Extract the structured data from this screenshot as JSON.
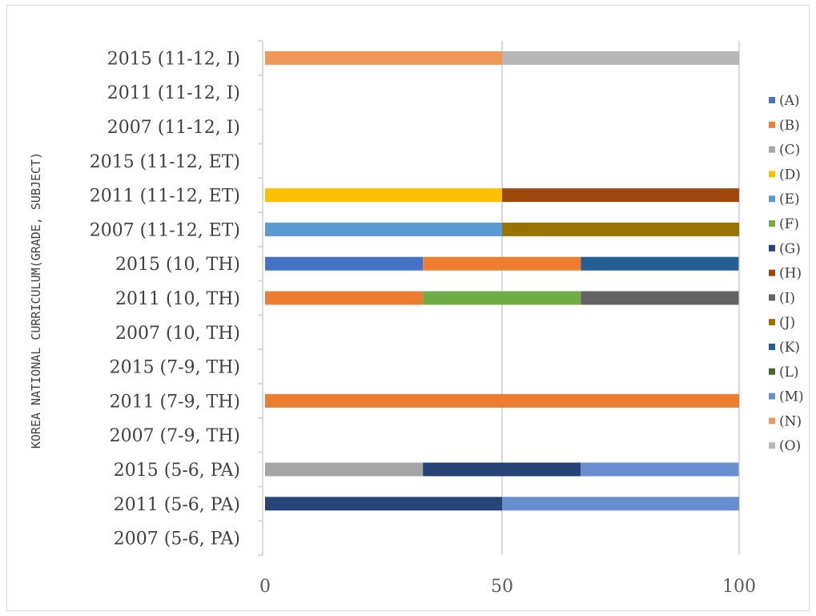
{
  "chart_data": {
    "type": "bar",
    "orientation": "horizontal",
    "stacked": true,
    "ylabel": "KOREA NATIONAL CURRICULUM(GRADE, SUBJECT)",
    "xlabel": "",
    "xlim": [
      0,
      100
    ],
    "xticks": [
      0,
      50,
      100
    ],
    "grid": "vertical",
    "legend_position": "right",
    "categories": [
      "2015 (11-12, I)",
      "2011 (11-12, I)",
      "2007 (11-12, I)",
      "2015 (11-12, ET)",
      "2011 (11-12, ET)",
      "2007 (11-12, ET)",
      "2015 (10, TH)",
      "2011 (10, TH)",
      "2007 (10, TH)",
      "2015 (7-9, TH)",
      "2011 (7-9, TH)",
      "2007 (7-9, TH)",
      "2015 (5-6, PA)",
      "2011 (5-6, PA)",
      "2007 (5-6, PA)"
    ],
    "series": [
      {
        "name": "(A)",
        "color": "#4472c4",
        "values": [
          0,
          0,
          0,
          0,
          0,
          0,
          33.3,
          0,
          0,
          0,
          0,
          0,
          0,
          0,
          0
        ]
      },
      {
        "name": "(B)",
        "color": "#ed7d31",
        "values": [
          0,
          0,
          0,
          0,
          0,
          0,
          33.3,
          33.3,
          0,
          0,
          100,
          0,
          0,
          0,
          0
        ]
      },
      {
        "name": "(C)",
        "color": "#a5a5a5",
        "values": [
          0,
          0,
          0,
          0,
          0,
          0,
          0,
          0,
          0,
          0,
          0,
          0,
          33.3,
          0,
          0
        ]
      },
      {
        "name": "(D)",
        "color": "#ffc000",
        "values": [
          0,
          0,
          0,
          0,
          50,
          0,
          0,
          0,
          0,
          0,
          0,
          0,
          0,
          0,
          0
        ]
      },
      {
        "name": "(E)",
        "color": "#5b9bd5",
        "values": [
          0,
          0,
          0,
          0,
          0,
          50,
          0,
          0,
          0,
          0,
          0,
          0,
          0,
          0,
          0
        ]
      },
      {
        "name": "(F)",
        "color": "#70ad47",
        "values": [
          0,
          0,
          0,
          0,
          0,
          0,
          0,
          33.3,
          0,
          0,
          0,
          0,
          0,
          0,
          0
        ]
      },
      {
        "name": "(G)",
        "color": "#264478",
        "values": [
          0,
          0,
          0,
          0,
          0,
          0,
          0,
          0,
          0,
          0,
          0,
          0,
          33.3,
          50,
          0
        ]
      },
      {
        "name": "(H)",
        "color": "#9e480e",
        "values": [
          0,
          0,
          0,
          0,
          50,
          0,
          0,
          0,
          0,
          0,
          0,
          0,
          0,
          0,
          0
        ]
      },
      {
        "name": "(I)",
        "color": "#636363",
        "values": [
          0,
          0,
          0,
          0,
          0,
          0,
          0,
          33.3,
          0,
          0,
          0,
          0,
          0,
          0,
          0
        ]
      },
      {
        "name": "(J)",
        "color": "#997300",
        "values": [
          0,
          0,
          0,
          0,
          0,
          50,
          0,
          0,
          0,
          0,
          0,
          0,
          0,
          0,
          0
        ]
      },
      {
        "name": "(K)",
        "color": "#255e91",
        "values": [
          0,
          0,
          0,
          0,
          0,
          0,
          33.3,
          0,
          0,
          0,
          0,
          0,
          0,
          0,
          0
        ]
      },
      {
        "name": "(L)",
        "color": "#43682b",
        "values": [
          0,
          0,
          0,
          0,
          0,
          0,
          0,
          0,
          0,
          0,
          0,
          0,
          0,
          0,
          0
        ]
      },
      {
        "name": "(M)",
        "color": "#698ed0",
        "values": [
          0,
          0,
          0,
          0,
          0,
          0,
          0,
          0,
          0,
          0,
          0,
          0,
          33.3,
          50,
          0
        ]
      },
      {
        "name": "(N)",
        "color": "#f1975a",
        "values": [
          50,
          0,
          0,
          0,
          0,
          0,
          0,
          0,
          0,
          0,
          0,
          0,
          0,
          0,
          0
        ]
      },
      {
        "name": "(O)",
        "color": "#b7b7b7",
        "values": [
          50,
          0,
          0,
          0,
          0,
          0,
          0,
          0,
          0,
          0,
          0,
          0,
          0,
          0,
          0
        ]
      }
    ]
  }
}
